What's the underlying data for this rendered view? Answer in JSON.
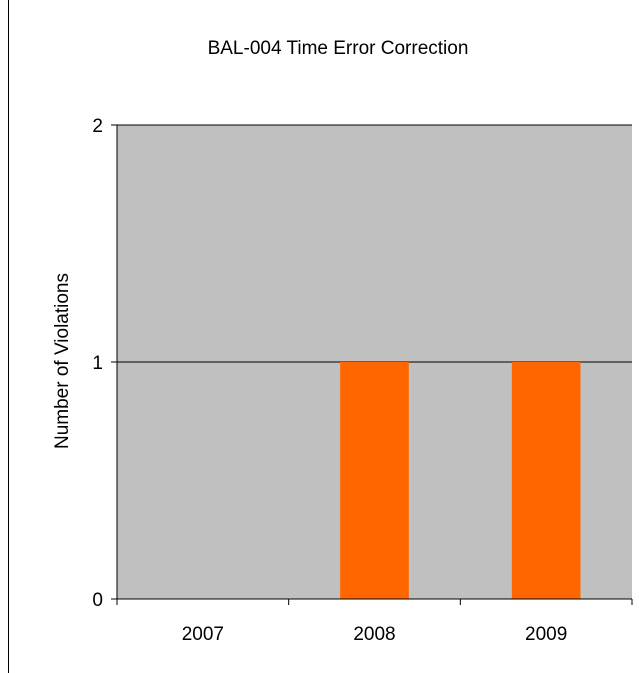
{
  "chart_data": {
    "type": "bar",
    "title": "BAL-004 Time Error Correction",
    "xlabel": "",
    "ylabel": "Number of Violations",
    "categories": [
      "2007",
      "2008",
      "2009"
    ],
    "values": [
      0,
      1,
      1
    ],
    "ylim": [
      0,
      2
    ],
    "yticks": [
      "0",
      "1",
      "2"
    ],
    "grid": true,
    "legend": "none",
    "colors": {
      "bar": "#ff6600",
      "plot_background": "#c0c0c0",
      "gridline": "#000000",
      "axis": "#000000"
    }
  }
}
